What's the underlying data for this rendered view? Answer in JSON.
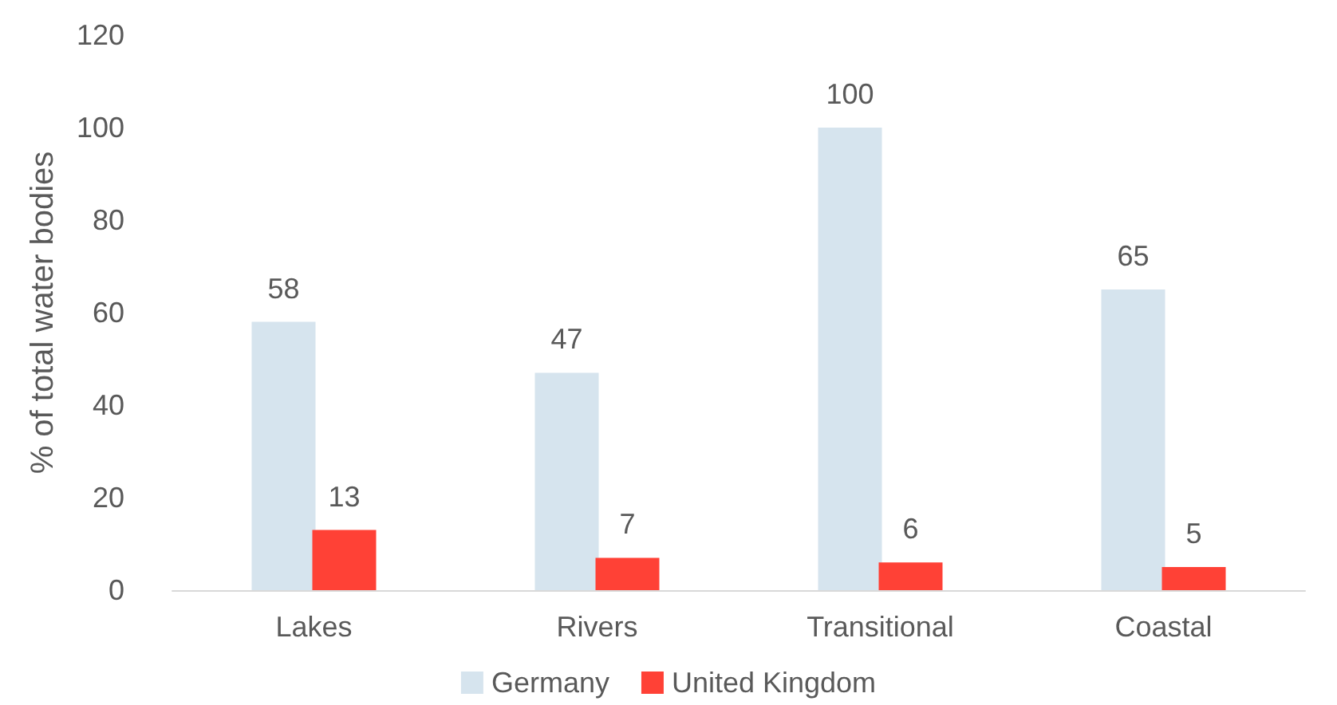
{
  "chart_data": {
    "type": "bar",
    "ylabel": "% of total water bodies",
    "categories": [
      "Lakes",
      "Rivers",
      "Transitional",
      "Coastal"
    ],
    "series": [
      {
        "name": "Germany",
        "color": "#d6e4ee",
        "values": [
          58,
          47,
          100,
          65
        ]
      },
      {
        "name": "United Kingdom",
        "color": "#ff4136",
        "values": [
          13,
          7,
          6,
          5
        ]
      }
    ],
    "ylim": [
      0,
      120
    ],
    "yticks": [
      0,
      20,
      40,
      60,
      80,
      100,
      120
    ],
    "grid": false,
    "legend": "bottom",
    "data_labels": true
  }
}
